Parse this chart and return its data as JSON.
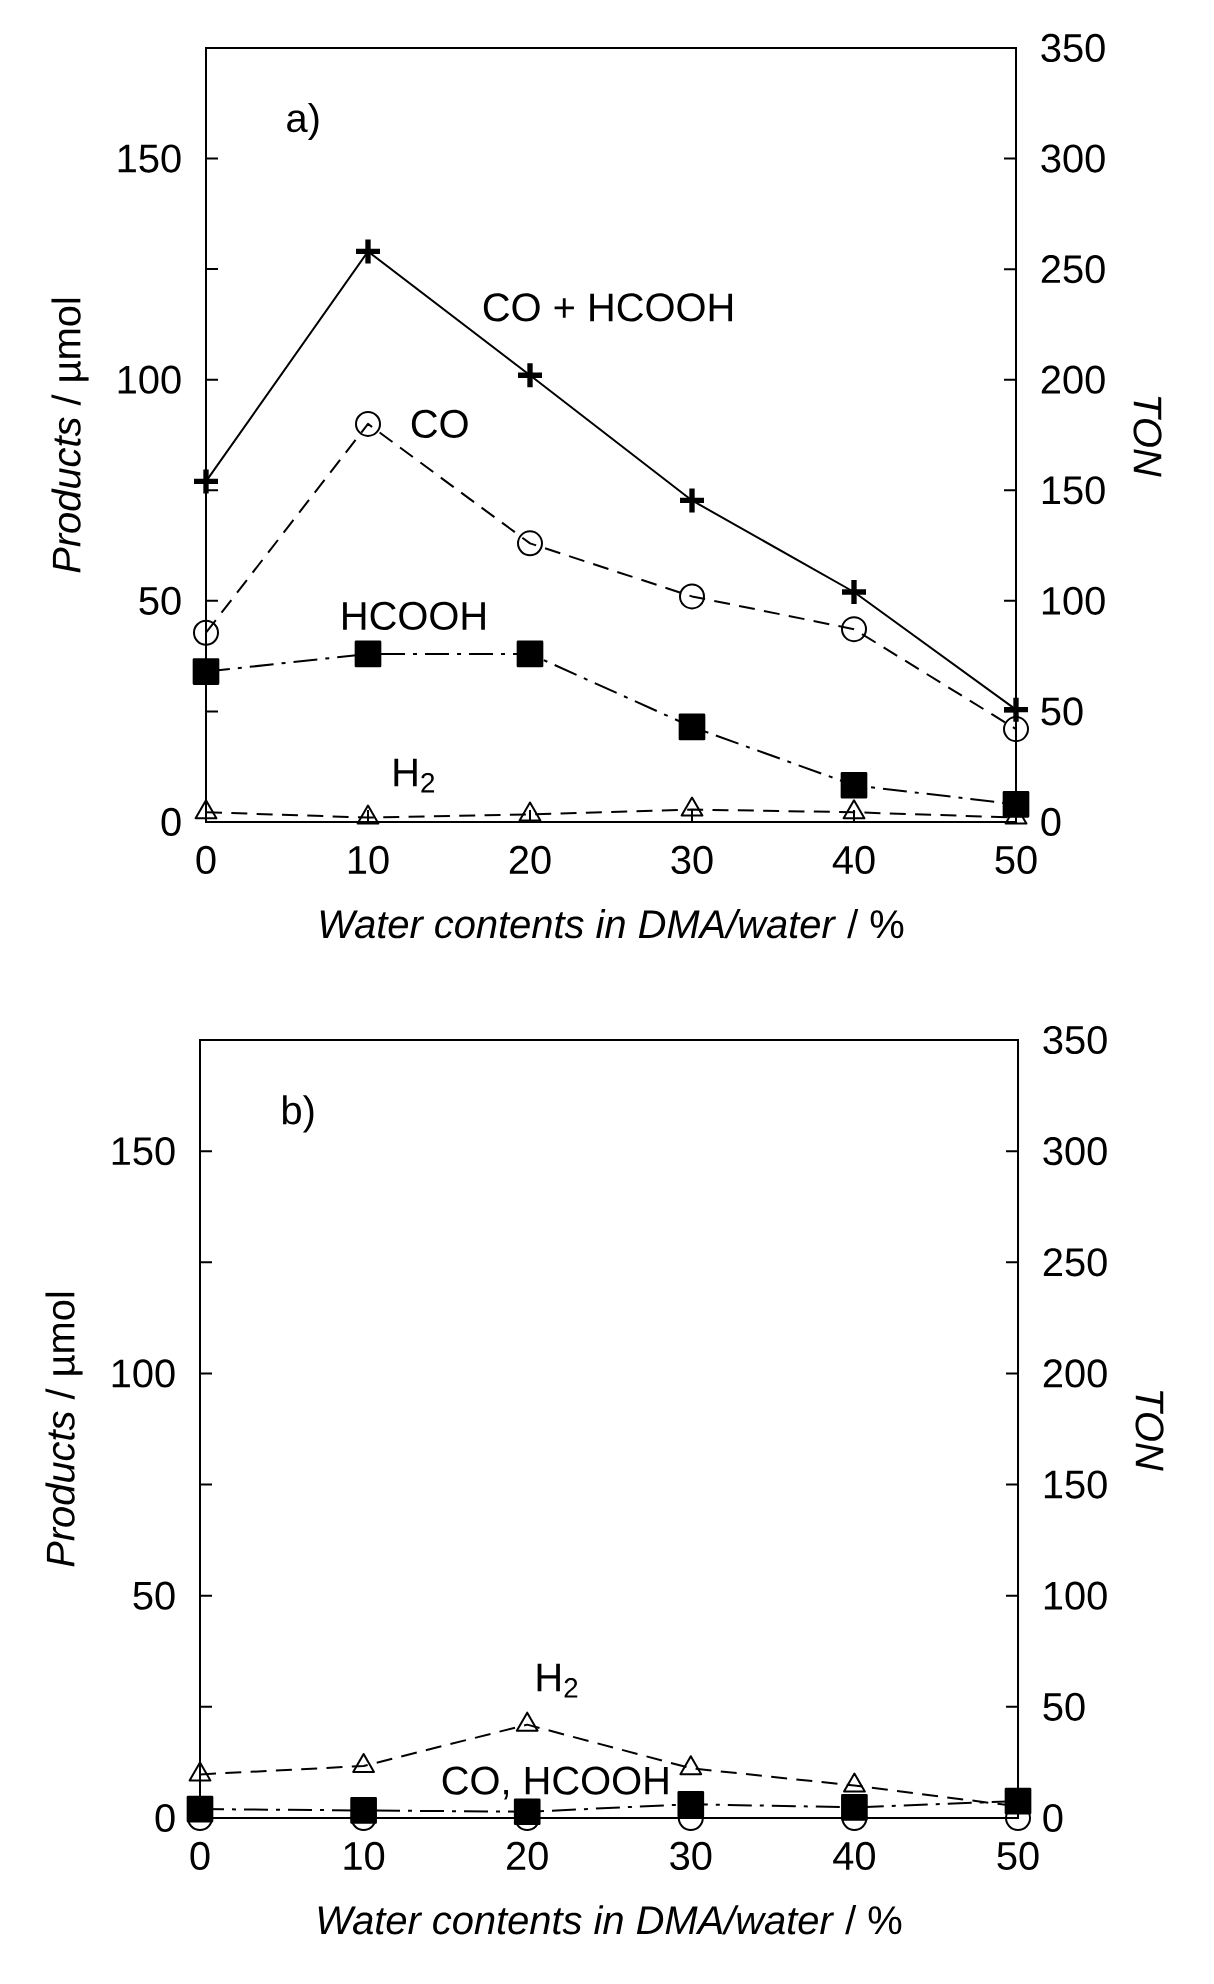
{
  "chart_data": [
    {
      "type": "line",
      "title": "a)",
      "xlabel": "*Water contents in DMA/water* / %",
      "ylabel": "*Products* / µmol",
      "y2label": "TON",
      "xlim": [
        0,
        50
      ],
      "xticks": [
        0,
        10,
        20,
        30,
        40,
        50
      ],
      "ylim": [
        0,
        175
      ],
      "yticks": [
        0,
        {
          "value": 25,
          "label": null
        },
        50,
        {
          "value": 75,
          "label": null
        },
        100,
        {
          "value": 125,
          "label": null
        },
        150
      ],
      "y2lim": [
        0,
        350
      ],
      "y2ticks": [
        0,
        50,
        100,
        150,
        200,
        250,
        300,
        350
      ],
      "x": [
        0,
        10,
        20,
        30,
        40,
        50
      ],
      "series": [
        {
          "name": "CO + HCOOH",
          "color": "#000000",
          "marker": "cross",
          "line_style": "solid",
          "values": [
            77,
            129,
            101,
            72.7,
            52,
            25.4
          ]
        },
        {
          "name": "CO",
          "color": "#000000",
          "marker": "circle",
          "line_style": "dashed",
          "values": [
            42.8,
            90,
            63,
            51,
            43.6,
            21
          ]
        },
        {
          "name": "HCOOH",
          "color": "#000000",
          "marker": "square",
          "line_style": "dashdot",
          "values": [
            34,
            38,
            38,
            21.5,
            8.3,
            4
          ]
        },
        {
          "name": "H$_{2}$",
          "color": "#000000",
          "marker": "triangle",
          "line_style": "dashed",
          "values": [
            2.2,
            1,
            1.7,
            2.8,
            2.2,
            1
          ]
        }
      ]
    },
    {
      "type": "line",
      "title": "b)",
      "xlabel": "*Water contents in DMA/water* / %",
      "ylabel": "*Products* / µmol",
      "y2label": "TON",
      "xlim": [
        0,
        50
      ],
      "xticks": [
        0,
        10,
        20,
        30,
        40,
        50
      ],
      "ylim": [
        0,
        175
      ],
      "yticks": [
        0,
        {
          "value": 25,
          "label": null
        },
        50,
        {
          "value": 75,
          "label": null
        },
        100,
        {
          "value": 125,
          "label": null
        },
        150
      ],
      "y2lim": [
        0,
        350
      ],
      "y2ticks": [
        0,
        50,
        100,
        150,
        200,
        250,
        300,
        350
      ],
      "x": [
        0,
        10,
        20,
        30,
        40,
        50
      ],
      "annotations": [
        "CO, HCOOH"
      ],
      "series": [
        {
          "name": "H$_{2}$",
          "color": "#000000",
          "marker": "triangle",
          "line_style": "dashed",
          "values": [
            9.8,
            11.7,
            21,
            11.2,
            7.3,
            2.6
          ]
        },
        {
          "color": "#000000",
          "marker": "square",
          "line_style": "dashdot",
          "values": [
            2,
            1.7,
            1.4,
            3.1,
            2.4,
            3.8
          ]
        },
        {
          "color": "#000000",
          "marker": "circle",
          "line_style": "solid",
          "values": [
            0,
            0,
            0,
            0,
            0,
            0
          ]
        }
      ]
    }
  ]
}
